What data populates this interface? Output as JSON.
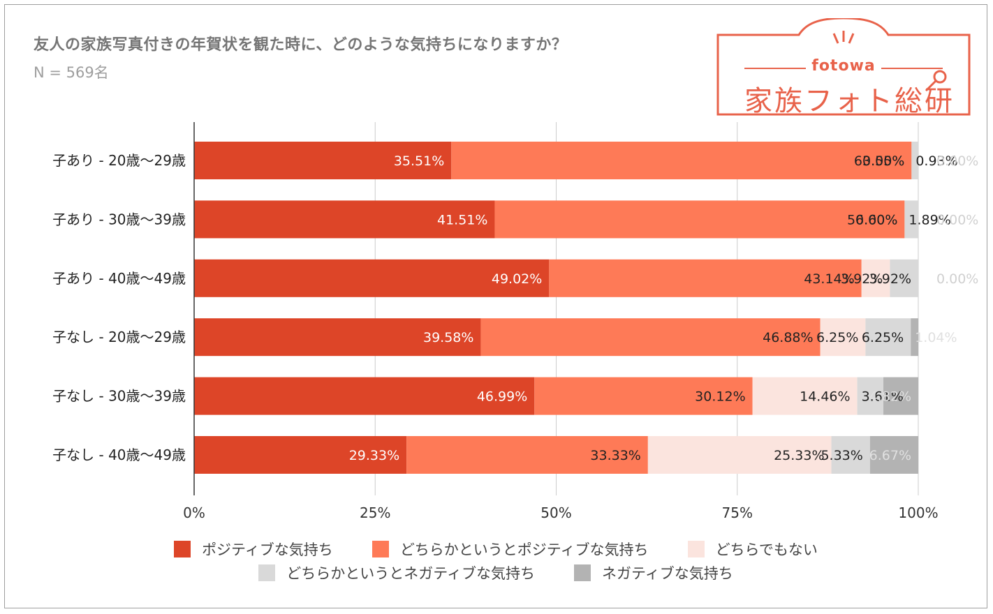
{
  "chart_data": {
    "type": "bar",
    "orientation": "horizontal",
    "stacked": "percent",
    "title": "友人の家族写真付きの年賀状を観た時に、どのような気持ちになりますか？",
    "subtitle": "N = 569名",
    "categories": [
      "子あり - 20歳〜29歳",
      "子あり - 30歳〜39歳",
      "子あり - 40歳〜49歳",
      "子なし - 20歳〜29歳",
      "子なし - 30歳〜39歳",
      "子なし - 40歳〜49歳"
    ],
    "series": [
      {
        "name": "ポジティブな気持ち",
        "color": "#dd4528",
        "label_color": "#ffffff",
        "values": [
          35.51,
          41.51,
          49.02,
          39.58,
          46.99,
          29.33
        ],
        "labels": [
          "35.51%",
          "41.51%",
          "49.02%",
          "39.58%",
          "46.99%",
          "29.33%"
        ]
      },
      {
        "name": "どちらかというとポジティブな気持ち",
        "color": "#fe7a57",
        "label_color": "#222222",
        "values": [
          63.55,
          56.6,
          43.14,
          46.88,
          30.12,
          33.33
        ],
        "labels": [
          "63.55%",
          "56.60%",
          "43.14%",
          "46.88%",
          "30.12%",
          "33.33%"
        ]
      },
      {
        "name": "どちらでもない",
        "color": "#fbe4de",
        "label_color": "#222222",
        "values": [
          0.0,
          0.0,
          3.92,
          6.25,
          14.46,
          25.33
        ],
        "labels": [
          "0.00%",
          "0.00%",
          "3.92%",
          "6.25%",
          "14.46%",
          "25.33%"
        ]
      },
      {
        "name": "どちらかというとネガティブな気持ち",
        "color": "#d9d9d9",
        "label_color": "#222222",
        "values": [
          0.93,
          1.89,
          3.92,
          6.25,
          3.61,
          5.33
        ],
        "labels": [
          "0.93%",
          "1.89%",
          "3.92%",
          "6.25%",
          "3.61%",
          "5.33%"
        ]
      },
      {
        "name": "ネガティブな気持ち",
        "color": "#b3b3b3",
        "label_color": "#e0e0e0",
        "values": [
          0.0,
          0.0,
          0.0,
          1.04,
          4.82,
          6.67
        ],
        "labels": [
          "0.00%",
          "0.00%",
          "0.00%",
          "1.04%",
          "4.82%",
          "6.67%"
        ]
      }
    ],
    "xlim": [
      0,
      100
    ],
    "xticks": [
      "0%",
      "25%",
      "50%",
      "75%",
      "100%"
    ],
    "grid": true,
    "legend_position": "bottom"
  },
  "logo": {
    "brand": "fotowa",
    "name": "家族フォト総研"
  }
}
